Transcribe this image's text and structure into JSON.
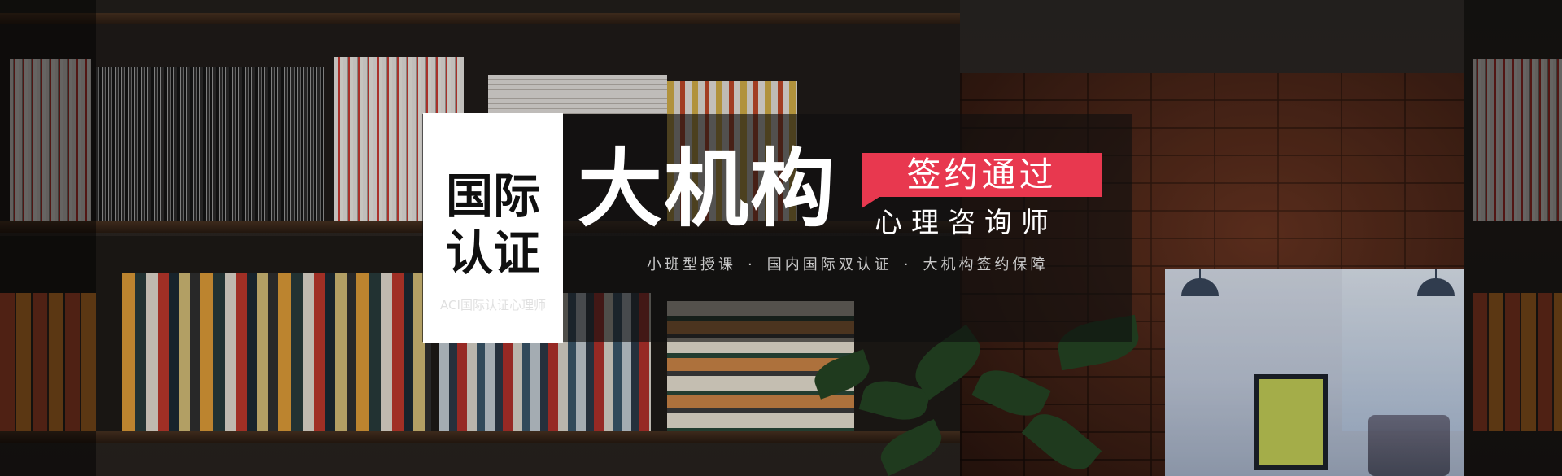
{
  "banner": {
    "badge_line1": "国际",
    "badge_line2": "认证",
    "badge_sub": "ACI国际认证心理师",
    "main_title": "大机构",
    "tag_text": "签约通过",
    "subtitle": "心理咨询师",
    "features": [
      "小班型授课",
      "国内国际双认证",
      "大机构签约保障"
    ],
    "separator": "·"
  },
  "colors": {
    "accent_red": "#e8384f",
    "badge_bg": "#ffffff",
    "text_light": "#ffffff",
    "text_muted": "#c9c9c9"
  }
}
